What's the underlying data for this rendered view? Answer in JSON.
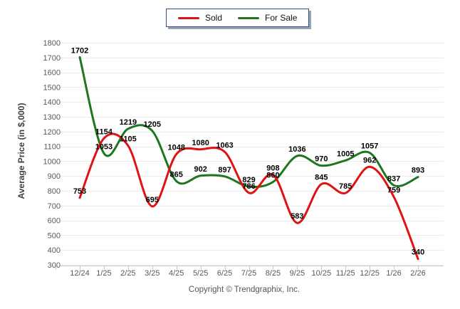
{
  "legend": {
    "items": [
      {
        "label": "Sold"
      },
      {
        "label": "For Sale"
      }
    ]
  },
  "footer": {
    "copyright": "Copyright © Trendgraphix, Inc."
  },
  "colors": {
    "sold": "#e01212",
    "for_sale": "#1e761e",
    "grid": "#ececec",
    "axis": "#c9c9c9",
    "tick_text": "#595959",
    "data_label": "#000000",
    "legend_border": "#35507a",
    "legend_shadow": "#94a3b8"
  },
  "chart_data": {
    "type": "line",
    "title": "",
    "xlabel": "",
    "ylabel": "Average Price (in $,000)",
    "categories": [
      "12/24",
      "1/25",
      "2/25",
      "3/25",
      "4/25",
      "5/25",
      "6/25",
      "7/25",
      "8/25",
      "9/25",
      "10/25",
      "11/25",
      "12/25",
      "1/26",
      "2/26"
    ],
    "series": [
      {
        "name": "Sold",
        "color": "#e01212",
        "values": [
          753,
          1154,
          1105,
          695,
          1048,
          1080,
          1063,
          786,
          908,
          583,
          845,
          785,
          962,
          759,
          340
        ]
      },
      {
        "name": "For Sale",
        "color": "#1e761e",
        "values": [
          1702,
          1053,
          1219,
          1205,
          865,
          902,
          897,
          829,
          860,
          1036,
          970,
          1005,
          1057,
          837,
          893
        ]
      }
    ],
    "ylim": [
      300,
      1800
    ],
    "ytick_step": 100,
    "grid": true,
    "legend_position": "top-center",
    "smoothing": "catmull-rom",
    "point_labels": true
  }
}
